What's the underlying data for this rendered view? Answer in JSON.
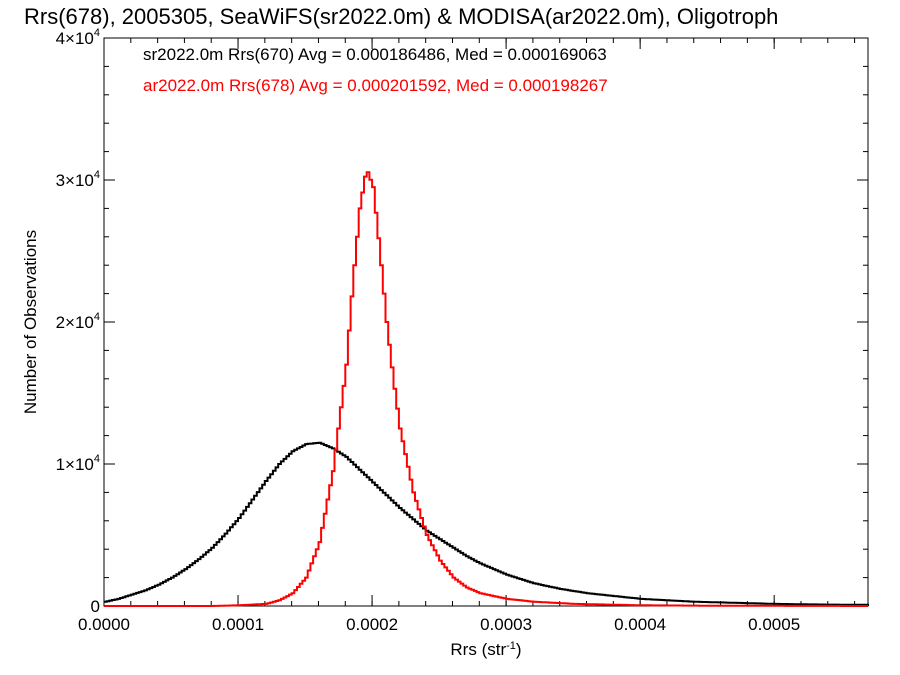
{
  "chart_data": {
    "type": "line",
    "title": "Rrs(678), 2005305, SeaWiFS(sr2022.0m) & MODISA(ar2022.0m), Oligotroph",
    "xlabel": {
      "base": "Rrs (str",
      "sup": "-1",
      "close": ")"
    },
    "ylabel": "Number of Observations",
    "xlim": [
      0,
      0.00057
    ],
    "ylim": [
      0,
      40000
    ],
    "xticks": [
      {
        "value": 0,
        "label": "0.0000"
      },
      {
        "value": 0.0001,
        "label": "0.0001"
      },
      {
        "value": 0.0002,
        "label": "0.0002"
      },
      {
        "value": 0.0003,
        "label": "0.0003"
      },
      {
        "value": 0.0004,
        "label": "0.0004"
      },
      {
        "value": 0.0005,
        "label": "0.0005"
      }
    ],
    "yticks": [
      {
        "value": 0,
        "mantissa": "0",
        "exp": ""
      },
      {
        "value": 10000,
        "mantissa": "1×10",
        "exp": "4"
      },
      {
        "value": 20000,
        "mantissa": "2×10",
        "exp": "4"
      },
      {
        "value": 30000,
        "mantissa": "3×10",
        "exp": "4"
      },
      {
        "value": 40000,
        "mantissa": "4×10",
        "exp": "4"
      }
    ],
    "x_minor_step": 2e-05,
    "y_minor_step": 2000,
    "histogram_step": true,
    "series": [
      {
        "label": "sr2022.0m Rrs(670) Avg = 0.000186486, Med = 0.000169063",
        "color": "#000000",
        "x": [
          0,
          1e-05,
          2e-05,
          3e-05,
          4e-05,
          5e-05,
          6e-05,
          7e-05,
          8e-05,
          9e-05,
          0.0001,
          0.00011,
          0.00012,
          0.00013,
          0.00014,
          0.00015,
          0.00016,
          0.00017,
          0.00018,
          0.00019,
          0.0002,
          0.00021,
          0.00022,
          0.00023,
          0.00024,
          0.00025,
          0.00026,
          0.00027,
          0.00028,
          0.00029,
          0.0003,
          0.00032,
          0.00034,
          0.00036,
          0.00038,
          0.0004,
          0.00042,
          0.00044,
          0.00046,
          0.00048,
          0.0005,
          0.00052,
          0.00054,
          0.00057
        ],
        "y": [
          300,
          500,
          800,
          1100,
          1500,
          2000,
          2600,
          3300,
          4100,
          5100,
          6200,
          7500,
          8800,
          10000,
          10900,
          11400,
          11500,
          11100,
          10500,
          9600,
          8700,
          7800,
          6900,
          6100,
          5300,
          4700,
          4100,
          3500,
          3000,
          2600,
          2200,
          1600,
          1200,
          900,
          700,
          500,
          400,
          300,
          250,
          200,
          150,
          120,
          100,
          80
        ]
      },
      {
        "label": "ar2022.0m Rrs(678) Avg = 0.000201592, Med = 0.000198267",
        "color": "#ff0000",
        "x": [
          0,
          8e-05,
          0.0001,
          0.00012,
          0.00013,
          0.00014,
          0.00015,
          0.00016,
          0.00017,
          0.00018,
          0.000185,
          0.00019,
          0.000195,
          0.0002,
          0.000205,
          0.00021,
          0.000215,
          0.00022,
          0.00023,
          0.00024,
          0.00025,
          0.00026,
          0.00027,
          0.00028,
          0.0003,
          0.00032,
          0.00035,
          0.0004,
          0.00045,
          0.00057
        ],
        "y": [
          0,
          0,
          50,
          150,
          400,
          900,
          2000,
          4500,
          9500,
          17000,
          23000,
          28000,
          30800,
          29500,
          25000,
          20000,
          16000,
          12500,
          8000,
          5000,
          3200,
          2000,
          1300,
          900,
          500,
          300,
          150,
          50,
          20,
          0
        ]
      }
    ]
  }
}
